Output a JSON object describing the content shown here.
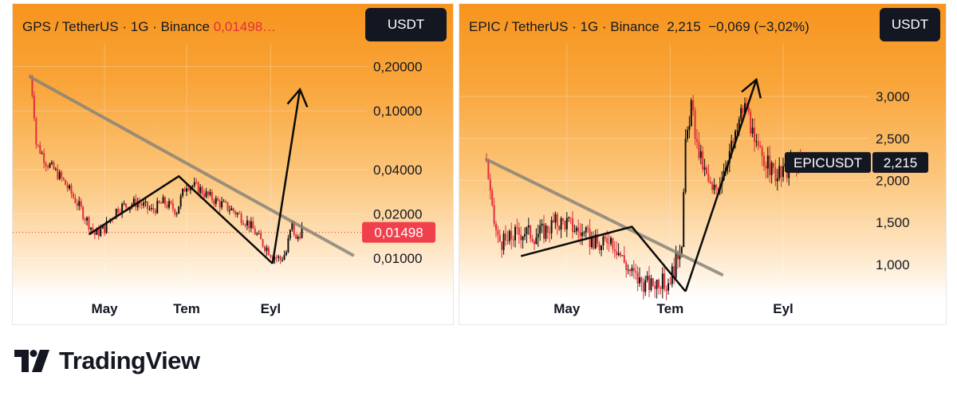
{
  "panels": {
    "gps": {
      "header_pair": "GPS / TetherUS · 1G · Binance",
      "header_price": "0,01498…",
      "quote_button": "USDT"
    },
    "epic": {
      "header_pair": "EPIC / TetherUS · 1G · Binance",
      "header_price": "2,215",
      "header_change": "−0,069 (−3,02%)",
      "quote_button": "USDT"
    }
  },
  "brand": {
    "logo_text": "TradingView",
    "logo_icon": "tradingview-logo-icon"
  },
  "colors": {
    "candle_up": "#0f0f10",
    "candle_down": "#e0303a",
    "price_label_bg": "#f0404c",
    "symbol_label_bg": "#131722",
    "trendline": "#8a8478",
    "drawing": "#0b0b0b"
  },
  "chart_data": [
    {
      "type": "candlestick",
      "symbol": "GPS / TetherUS",
      "interval": "1G",
      "exchange": "Binance",
      "scale": "log",
      "ylim": [
        0.0068,
        0.3
      ],
      "y_ticks": [
        "0,20000",
        "0,10000",
        "0,04000",
        "0,02000",
        "0,01000"
      ],
      "y_tick_values": [
        0.2,
        0.1,
        0.04,
        0.02,
        0.01
      ],
      "x_ticks": [
        "May",
        "Tem",
        "Eyl"
      ],
      "last_price": 0.01498,
      "last_price_label": "0,01498",
      "start_price": 0.17,
      "sparse_anchors": [
        [
          0,
          0.17
        ],
        [
          3,
          0.06
        ],
        [
          8,
          0.045
        ],
        [
          15,
          0.036
        ],
        [
          22,
          0.026
        ],
        [
          28,
          0.019
        ],
        [
          33,
          0.0145
        ],
        [
          38,
          0.016
        ],
        [
          45,
          0.022
        ],
        [
          55,
          0.024
        ],
        [
          62,
          0.021
        ],
        [
          68,
          0.024
        ],
        [
          75,
          0.021
        ],
        [
          80,
          0.032
        ],
        [
          86,
          0.03
        ],
        [
          90,
          0.027
        ],
        [
          96,
          0.024
        ],
        [
          104,
          0.021
        ],
        [
          112,
          0.017
        ],
        [
          118,
          0.013
        ],
        [
          124,
          0.0105
        ],
        [
          128,
          0.0098
        ],
        [
          131,
          0.011
        ],
        [
          134,
          0.017
        ],
        [
          136,
          0.013
        ],
        [
          139,
          0.016
        ]
      ],
      "candle_count": 140,
      "x_month_index": {
        "May": 38,
        "Tem": 80,
        "Eyl": 123
      },
      "annotations": {
        "trendline": [
          [
            0,
            0.17
          ],
          [
            165,
            0.0105
          ]
        ],
        "zigzag": [
          [
            30,
            0.0145
          ],
          [
            76,
            0.036
          ],
          [
            124,
            0.0092
          ]
        ],
        "arrow": [
          [
            124,
            0.0092
          ],
          [
            138,
            0.14
          ]
        ]
      }
    },
    {
      "type": "candlestick",
      "symbol": "EPIC / TetherUS",
      "interval": "1G",
      "exchange": "Binance",
      "scale": "linear",
      "ylim": [
        0.45,
        3.55
      ],
      "y_ticks": [
        "3,000",
        "2,500",
        "2,000",
        "1,500",
        "1,000"
      ],
      "y_tick_values": [
        3.0,
        2.5,
        2.0,
        1.5,
        1.0
      ],
      "x_ticks": [
        "May",
        "Tem",
        "Eyl"
      ],
      "last_price": 2.215,
      "last_price_label": "2,215",
      "symbol_label": "EPICUSDT",
      "change": -0.069,
      "change_pct": -3.02,
      "sparse_anchors": [
        [
          0,
          2.25
        ],
        [
          3,
          1.6
        ],
        [
          6,
          1.3
        ],
        [
          10,
          1.25
        ],
        [
          14,
          1.35
        ],
        [
          20,
          1.4
        ],
        [
          25,
          1.35
        ],
        [
          30,
          1.4
        ],
        [
          36,
          1.5
        ],
        [
          42,
          1.5
        ],
        [
          48,
          1.4
        ],
        [
          54,
          1.3
        ],
        [
          60,
          1.2
        ],
        [
          64,
          1.35
        ],
        [
          68,
          1.2
        ],
        [
          74,
          0.95
        ],
        [
          80,
          0.8
        ],
        [
          86,
          0.75
        ],
        [
          90,
          0.82
        ],
        [
          94,
          0.75
        ],
        [
          98,
          0.95
        ],
        [
          102,
          1.3
        ],
        [
          104,
          2.4
        ],
        [
          107,
          2.9
        ],
        [
          110,
          2.4
        ],
        [
          114,
          2.1
        ],
        [
          118,
          1.85
        ],
        [
          122,
          2.0
        ],
        [
          126,
          2.3
        ],
        [
          130,
          2.5
        ],
        [
          133,
          2.8
        ],
        [
          136,
          2.9
        ],
        [
          140,
          2.4
        ],
        [
          144,
          2.3
        ],
        [
          148,
          2.15
        ],
        [
          152,
          2.05
        ],
        [
          156,
          2.1
        ],
        [
          160,
          2.2
        ],
        [
          164,
          2.215
        ]
      ],
      "candle_count": 165,
      "x_month_index": {
        "May": 42,
        "Tem": 96,
        "Eyl": 155
      },
      "annotations": {
        "trendline": [
          [
            0,
            2.25
          ],
          [
            123,
            0.88
          ]
        ],
        "zigzag": [
          [
            18,
            1.1
          ],
          [
            76,
            1.45
          ],
          [
            104,
            0.68
          ]
        ],
        "arrow": [
          [
            104,
            0.68
          ],
          [
            141,
            3.2
          ]
        ]
      }
    }
  ]
}
